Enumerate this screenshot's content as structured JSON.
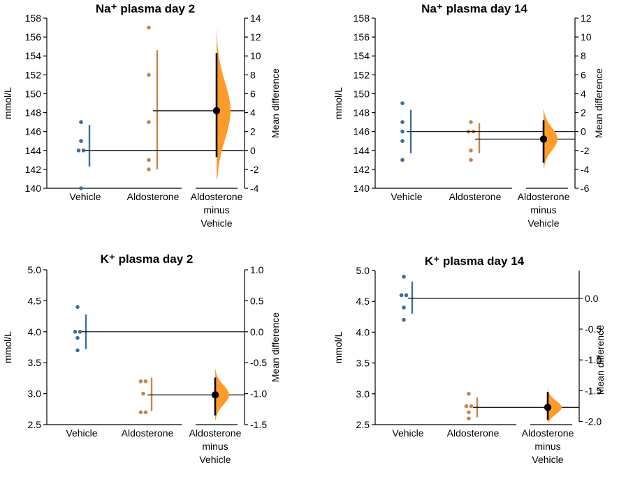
{
  "colors": {
    "vehicle": "#3d6f9a",
    "aldosterone": "#c9854a",
    "effect": "#ff9b2b",
    "axis": "#000000"
  },
  "chart_data": [
    {
      "type": "scatter",
      "title": "Na⁺ plasma day 2",
      "ylabel": "mmol/L",
      "right_ylabel": "Mean difference",
      "ylim": [
        140,
        158
      ],
      "yticks": [
        "140",
        "142",
        "144",
        "146",
        "148",
        "150",
        "152",
        "154",
        "156",
        "158"
      ],
      "right_ylim": [
        -4,
        14
      ],
      "right_yticks": [
        "-4",
        "-2",
        "0",
        "2",
        "4",
        "6",
        "8",
        "10",
        "12",
        "14"
      ],
      "categories": [
        "Vehicle",
        "Aldosterone",
        "Aldosterone minus Vehicle"
      ],
      "x_labels": [
        [
          "Vehicle"
        ],
        [
          "Aldosterone"
        ],
        [
          "Aldosterone",
          "minus",
          "Vehicle"
        ]
      ],
      "series": [
        {
          "name": "Vehicle",
          "points": [
            140,
            144,
            144,
            145,
            147
          ],
          "mean": 144,
          "sd_low": 142.3,
          "sd_high": 146.7
        },
        {
          "name": "Aldosterone",
          "points": [
            142,
            143,
            147,
            152,
            157
          ],
          "mean": 148.2,
          "sd_low": 142,
          "sd_high": 154.6
        }
      ],
      "mean_difference": {
        "value": 4.2,
        "ci_low": -0.7,
        "ci_high": 10.3,
        "dist_low": -3,
        "dist_high": 12.7
      }
    },
    {
      "type": "scatter",
      "title": "Na⁺ plasma day 14",
      "ylabel": "mmol/L",
      "right_ylabel": "Mean difference",
      "ylim": [
        140,
        158
      ],
      "yticks": [
        "140",
        "142",
        "144",
        "146",
        "148",
        "150",
        "152",
        "154",
        "156",
        "158"
      ],
      "right_ylim": [
        -6,
        12
      ],
      "right_yticks": [
        "-6",
        "-4",
        "-2",
        "0",
        "2",
        "4",
        "6",
        "8",
        "10",
        "12"
      ],
      "categories": [
        "Vehicle",
        "Aldosterone",
        "Aldosterone minus Vehicle"
      ],
      "x_labels": [
        [
          "Vehicle"
        ],
        [
          "Aldosterone"
        ],
        [
          "Aldosterone",
          "minus",
          "Vehicle"
        ]
      ],
      "series": [
        {
          "name": "Vehicle",
          "points": [
            143,
            145,
            146,
            147,
            149
          ],
          "mean": 146,
          "sd_low": 143.7,
          "sd_high": 148.3
        },
        {
          "name": "Aldosterone",
          "points": [
            143,
            144,
            146,
            146,
            147
          ],
          "mean": 145.2,
          "sd_low": 143.7,
          "sd_high": 146.9
        },
        {
          "name": "Vehicle mean line",
          "points": [],
          "mean": 146
        }
      ],
      "mean_difference": {
        "value": -0.8,
        "ci_low": -3.3,
        "ci_high": 1.2,
        "dist_low": -3.9,
        "dist_high": 2.3
      }
    },
    {
      "type": "scatter",
      "title": "K⁺ plasma day 2",
      "ylabel": "mmol/L",
      "right_ylabel": "Mean difference",
      "ylim": [
        2.5,
        5.0
      ],
      "yticks": [
        "2.5",
        "3.0",
        "3.5",
        "4.0",
        "4.5",
        "5.0"
      ],
      "right_ylim": [
        -1.5,
        1.0
      ],
      "right_yticks": [
        "-1.5",
        "-1.0",
        "-0.5",
        "0.0",
        "0.5",
        "1.0"
      ],
      "categories": [
        "Vehicle",
        "Aldosterone",
        "Aldosterone minus Vehicle"
      ],
      "x_labels": [
        [
          "Vehicle"
        ],
        [
          "Aldosterone"
        ],
        [
          "Aldosterone",
          "minus",
          "Vehicle"
        ]
      ],
      "series": [
        {
          "name": "Vehicle",
          "points": [
            3.7,
            3.9,
            4.0,
            4.0,
            4.4
          ],
          "mean": 4.0,
          "sd_low": 3.72,
          "sd_high": 4.28
        },
        {
          "name": "Aldosterone",
          "points": [
            2.7,
            2.7,
            3.0,
            3.2,
            3.2
          ],
          "mean": 2.98,
          "sd_low": 2.72,
          "sd_high": 3.26
        }
      ],
      "mean_difference": {
        "value": -1.02,
        "ci_low": -1.35,
        "ci_high": -0.74,
        "dist_low": -1.42,
        "dist_high": -0.61
      }
    },
    {
      "type": "scatter",
      "title": "K⁺ plasma day 14",
      "ylabel": "mmol/L",
      "right_ylabel": "Mean difference",
      "ylim": [
        2.5,
        5.0
      ],
      "yticks": [
        "2.5",
        "3.0",
        "3.5",
        "4.0",
        "4.5",
        "5.0"
      ],
      "right_ylim": [
        -2.0,
        0.4
      ],
      "right_yticks": [
        "-2.0",
        "-1.5",
        "-1.0",
        "-0.5",
        "0.0"
      ],
      "categories": [
        "Vehicle",
        "Aldosterone",
        "Aldosterone minus Vehicle"
      ],
      "x_labels": [
        [
          "Vehicle"
        ],
        [
          "Aldosterone"
        ],
        [
          "Aldosterone",
          "minus",
          "Vehicle"
        ]
      ],
      "series": [
        {
          "name": "Vehicle",
          "points": [
            4.2,
            4.4,
            4.6,
            4.6,
            4.9
          ],
          "mean": 4.55,
          "sd_low": 4.3,
          "sd_high": 4.82
        },
        {
          "name": "Aldosterone",
          "points": [
            2.6,
            2.7,
            2.8,
            2.8,
            3.0
          ],
          "mean": 2.78,
          "sd_low": 2.62,
          "sd_high": 2.94
        }
      ],
      "mean_difference": {
        "value": -1.77,
        "ci_low": -1.97,
        "ci_high": -1.52,
        "dist_low": -2.0,
        "dist_high": -1.44
      }
    }
  ]
}
